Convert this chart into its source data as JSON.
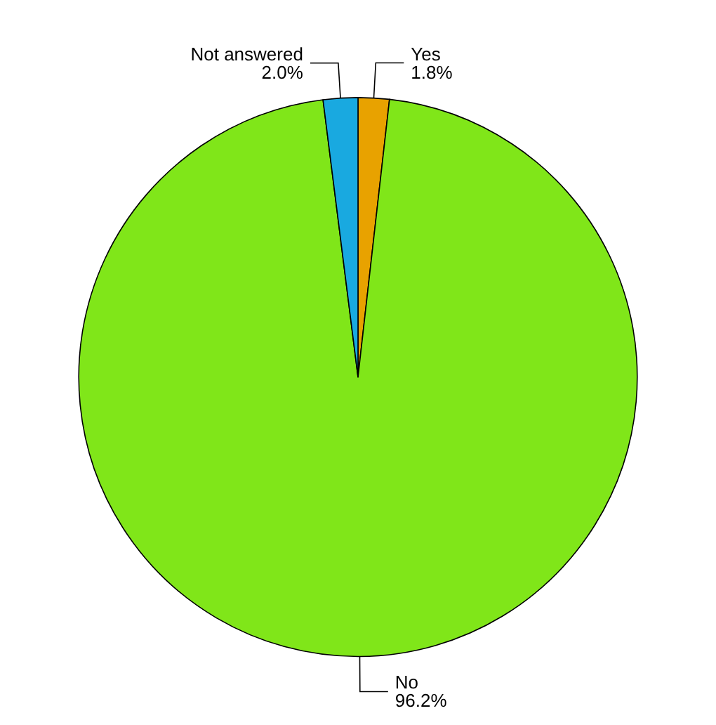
{
  "chart_data": {
    "type": "pie",
    "categories": [
      "Yes",
      "No",
      "Not answered"
    ],
    "values": [
      1.8,
      96.2,
      2.0
    ],
    "colors": [
      "#e8a200",
      "#80e619",
      "#19a9e0"
    ],
    "value_labels": [
      "1.8%",
      "96.2%",
      "2.0%"
    ],
    "legend": false
  }
}
